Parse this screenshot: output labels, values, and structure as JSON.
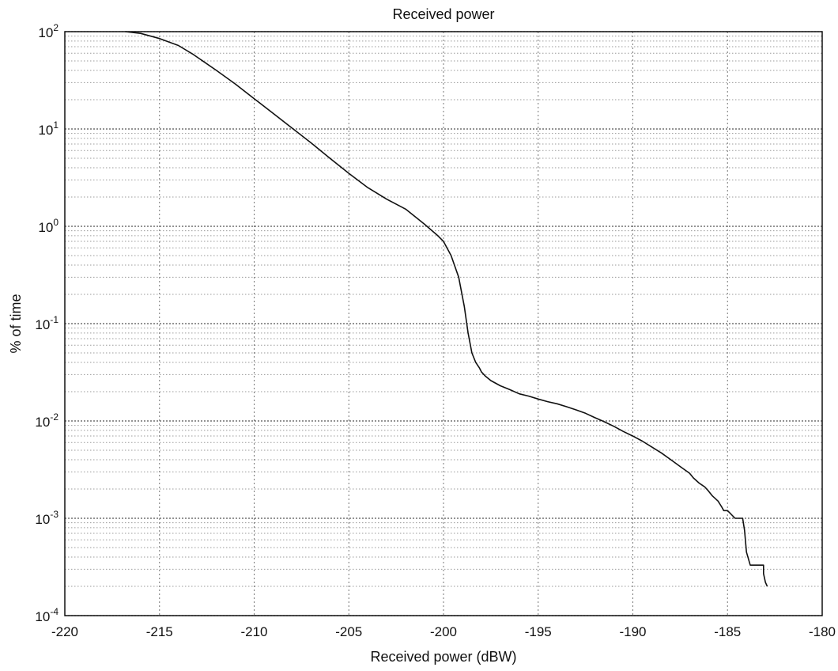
{
  "chart_data": {
    "type": "line",
    "title": "Received power",
    "xlabel": "Received power (dBW)",
    "ylabel": "% of time",
    "xlim": [
      -220,
      -180
    ],
    "ylim": [
      0.0001,
      100
    ],
    "yscale": "log",
    "grid": true,
    "minor_grid": true,
    "x_ticks": [
      -220,
      -215,
      -210,
      -205,
      -200,
      -195,
      -190,
      -185,
      -180
    ],
    "x_tick_labels": [
      "-220",
      "-215",
      "-210",
      "-205",
      "-200",
      "-195",
      "-190",
      "-185",
      "-180"
    ],
    "y_ticks": [
      0.0001,
      0.001,
      0.01,
      0.1,
      1,
      10,
      100
    ],
    "y_tick_labels": [
      {
        "base": "10",
        "exp": "-4"
      },
      {
        "base": "10",
        "exp": "-3"
      },
      {
        "base": "10",
        "exp": "-2"
      },
      {
        "base": "10",
        "exp": "-1"
      },
      {
        "base": "10",
        "exp": "0"
      },
      {
        "base": "10",
        "exp": "1"
      },
      {
        "base": "10",
        "exp": "2"
      }
    ],
    "line_color": "#111111",
    "grid_color": "#9a9a9a",
    "series": [
      {
        "x": [
          -216.8,
          -216,
          -215,
          -214,
          -213.2,
          -212,
          -211,
          -210,
          -209,
          -208,
          -207,
          -206,
          -205,
          -204,
          -203,
          -202,
          -201,
          -200.3,
          -200,
          -199.6,
          -199.2,
          -198.9,
          -198.7,
          -198.5,
          -198.3,
          -198.1,
          -198,
          -197.8,
          -197.5,
          -197,
          -196.5,
          -196,
          -195.5,
          -195,
          -194.5,
          -194,
          -193.5,
          -193,
          -192.5,
          -192,
          -191.5,
          -191,
          -190.5,
          -190,
          -189.5,
          -189,
          -188.5,
          -188,
          -187.5,
          -187,
          -186.8,
          -186.5,
          -186.2,
          -186,
          -185.8,
          -185.5,
          -185.3,
          -185.2,
          -185,
          -184.6,
          -184.4,
          -184.3,
          -184.2,
          -184.1,
          -184,
          -183.8,
          -183.5,
          -183.2,
          -183.1,
          -183.1,
          -183,
          -182.9
        ],
        "y": [
          100,
          96,
          85,
          72,
          58,
          40,
          29,
          20.5,
          14.5,
          10.2,
          7.2,
          5,
          3.5,
          2.5,
          1.9,
          1.5,
          1.05,
          0.8,
          0.7,
          0.5,
          0.3,
          0.15,
          0.08,
          0.05,
          0.04,
          0.035,
          0.032,
          0.029,
          0.026,
          0.023,
          0.021,
          0.019,
          0.018,
          0.0168,
          0.0158,
          0.015,
          0.014,
          0.013,
          0.012,
          0.0108,
          0.0098,
          0.0088,
          0.0078,
          0.007,
          0.0062,
          0.0054,
          0.0047,
          0.004,
          0.0034,
          0.0029,
          0.0026,
          0.0023,
          0.0021,
          0.0019,
          0.0017,
          0.0015,
          0.0013,
          0.0012,
          0.0012,
          0.001,
          0.001,
          0.001,
          0.001,
          0.00075,
          0.00045,
          0.00033,
          0.00033,
          0.00033,
          0.00033,
          0.00027,
          0.00022,
          0.0002
        ]
      }
    ]
  }
}
